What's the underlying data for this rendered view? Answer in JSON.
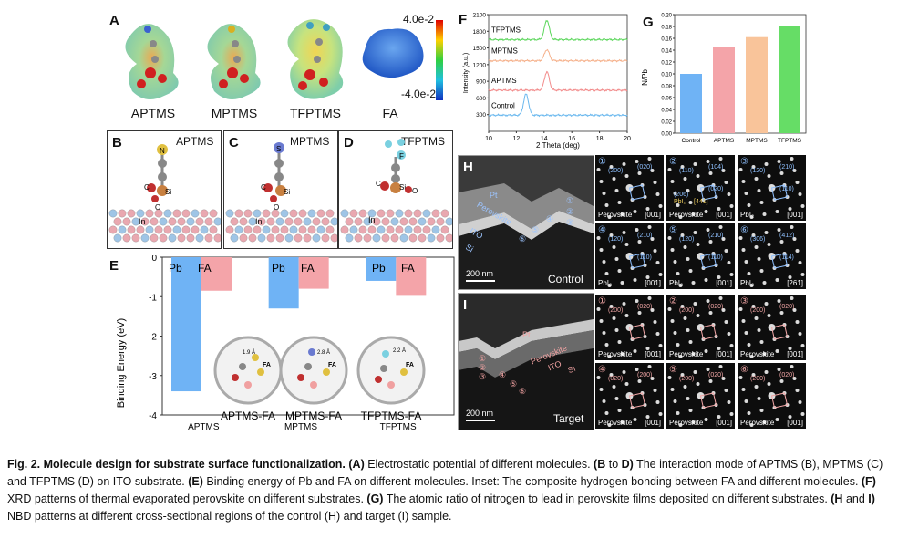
{
  "panel_letters": {
    "A": "A",
    "B": "B",
    "C": "C",
    "D": "D",
    "E": "E",
    "F": "F",
    "G": "G",
    "H": "H",
    "I": "I"
  },
  "panelA": {
    "molecules": [
      "APTMS",
      "MPTMS",
      "TFPTMS",
      "FA"
    ],
    "scale_max": "4.0e-2",
    "scale_min": "-4.0e-2",
    "colors": {
      "top": "#e00000",
      "mid": "#2ecc40",
      "bottom": "#1030c0",
      "fa": "#2f6fd0"
    }
  },
  "panelB": {
    "title": "APTMS",
    "atoms": [
      "N",
      "C",
      "O",
      "Si",
      "In"
    ]
  },
  "panelC": {
    "title": "MPTMS",
    "atoms": [
      "S",
      "C",
      "O",
      "Si",
      "In"
    ]
  },
  "panelD": {
    "title": "TFPTMS",
    "atoms": [
      "F",
      "C",
      "O",
      "Si",
      "In"
    ]
  },
  "panelE": {
    "legend": [
      "Pb",
      "FA"
    ],
    "insets": [
      "APTMS-FA",
      "MPTMS-FA",
      "TFPTMS-FA"
    ],
    "inset_labels": [
      "1.9 Å",
      "2.8 Å",
      "3.2 Å",
      "2.2 Å",
      "FA"
    ]
  },
  "panelF": {
    "series_names": [
      "TFPTMS",
      "MPTMS",
      "APTMS",
      "Control"
    ]
  },
  "panelH": {
    "scale": "200 nm",
    "label": "Control",
    "layers": [
      "Pt",
      "Perovskite",
      "ITO",
      "Si"
    ],
    "points": [
      "①",
      "②",
      "③",
      "④",
      "⑤",
      "⑥"
    ]
  },
  "panelI": {
    "scale": "200 nm",
    "label": "Target",
    "layers": [
      "Pt",
      "Perovskite",
      "ITO",
      "Si"
    ],
    "points": [
      "①",
      "②",
      "③",
      "④",
      "⑤",
      "⑥"
    ]
  },
  "nbd_control": [
    {
      "n": "①",
      "label": "Perovskite",
      "zone": "[001]",
      "spots": [
        "(200)",
        "(020)"
      ]
    },
    {
      "n": "②",
      "label": "Perovskite",
      "zone": "[001]",
      "spots": [
        "(110)",
        "(104)",
        "(020)",
        "(206)"
      ],
      "extra": "PbI₂",
      "extra_zone": "[441]"
    },
    {
      "n": "③",
      "label": "PbI₂",
      "zone": "[001]",
      "spots": [
        "(120)",
        "(210)",
        "(110)"
      ]
    },
    {
      "n": "④",
      "label": "PbI₂",
      "zone": "[001]",
      "spots": [
        "(120)",
        "(210)",
        "(110)"
      ]
    },
    {
      "n": "⑤",
      "label": "PbI₂",
      "zone": "[001]",
      "spots": [
        "(120)",
        "(210)",
        "(110)"
      ]
    },
    {
      "n": "⑥",
      "label": "PbI₂",
      "zone": "[261]",
      "spots": [
        "(306)",
        "(412)",
        "(114)"
      ]
    }
  ],
  "nbd_target": [
    {
      "n": "①",
      "label": "Perovskite",
      "zone": "[001]",
      "spots": [
        "(200)",
        "(020)"
      ]
    },
    {
      "n": "②",
      "label": "Perovskite",
      "zone": "[001]",
      "spots": [
        "(200)",
        "(020)"
      ]
    },
    {
      "n": "③",
      "label": "Perovskite",
      "zone": "[001]",
      "spots": [
        "(200)",
        "(020)"
      ]
    },
    {
      "n": "④",
      "label": "Perovskite",
      "zone": "[001]",
      "spots": [
        "(020)",
        "(200)"
      ]
    },
    {
      "n": "⑤",
      "label": "Perovskite",
      "zone": "[001]",
      "spots": [
        "(200)",
        "(020)"
      ]
    },
    {
      "n": "⑥",
      "label": "Perovskite",
      "zone": "[001]",
      "spots": [
        "(200)",
        "(020)"
      ]
    }
  ],
  "chart_data": [
    {
      "type": "bar",
      "panel": "E",
      "categories": [
        "APTMS",
        "MPTMS",
        "TFPTMS"
      ],
      "series": [
        {
          "name": "Pb",
          "values": [
            -3.4,
            -1.3,
            -0.6
          ],
          "color": "#6fb3f5"
        },
        {
          "name": "FA",
          "values": [
            -0.85,
            -0.8,
            -0.98
          ],
          "color": "#f4a4a9"
        }
      ],
      "ylabel": "Binding Energy (eV)",
      "ylim": [
        -4,
        0
      ],
      "yticks": [
        0,
        -1,
        -2,
        -3,
        -4
      ]
    },
    {
      "type": "line",
      "panel": "F",
      "xlabel": "2 Theta (deg)",
      "ylabel": "Intensity (a.u.)",
      "xlim": [
        10,
        20
      ],
      "ylim": [
        0,
        2100
      ],
      "xticks": [
        10,
        12,
        14,
        16,
        18,
        20
      ],
      "yticks": [
        300,
        600,
        900,
        1200,
        1500,
        1800,
        2100
      ],
      "series": [
        {
          "name": "TFPTMS",
          "color": "#5bd65b",
          "offset": 1650,
          "peaks": [
            [
              14.2,
              350
            ]
          ]
        },
        {
          "name": "MPTMS",
          "color": "#f5b08a",
          "offset": 1270,
          "peaks": [
            [
              14.2,
              200
            ]
          ]
        },
        {
          "name": "APTMS",
          "color": "#f28b8b",
          "offset": 740,
          "peaks": [
            [
              14.2,
              330
            ]
          ]
        },
        {
          "name": "Control",
          "color": "#6ab8ee",
          "offset": 290,
          "peaks": [
            [
              12.7,
              380
            ]
          ]
        }
      ]
    },
    {
      "type": "bar",
      "panel": "G",
      "categories": [
        "Control",
        "APTMS",
        "MPTMS",
        "TFPTMS"
      ],
      "values": [
        0.1,
        0.145,
        0.162,
        0.18
      ],
      "colors": [
        "#6fb3f5",
        "#f4a4a9",
        "#f9c49a",
        "#66dd66"
      ],
      "ylabel": "N/Pb",
      "ylim": [
        0.0,
        0.2
      ],
      "yticks": [
        0.0,
        0.02,
        0.04,
        0.06,
        0.08,
        0.1,
        0.12,
        0.14,
        0.16,
        0.18,
        0.2
      ]
    }
  ],
  "caption": {
    "title": "Fig. 2. Molecule design for substrate surface functionalization.",
    "parts": [
      {
        "b": "(A)",
        "t": " Electrostatic potential of different molecules. "
      },
      {
        "b": "(B",
        "t": " to "
      },
      {
        "b": "D)",
        "t": " The interaction mode of APTMS (B), MPTMS (C) and TFPTMS (D) on ITO substrate. "
      },
      {
        "b": "(E)",
        "t": " Binding energy of Pb and FA on different molecules. Inset: The composite hydrogen bonding between FA and different molecules. "
      },
      {
        "b": "(F)",
        "t": " XRD patterns of thermal evaporated perovskite on different substrates. "
      },
      {
        "b": "(G)",
        "t": " The atomic ratio of nitrogen to lead in perovskite films deposited on different substrates. "
      },
      {
        "b": "(H",
        "t": " and "
      },
      {
        "b": "I)",
        "t": " NBD patterns at different cross-sectional regions of the control (H) and target (I) sample."
      }
    ]
  }
}
